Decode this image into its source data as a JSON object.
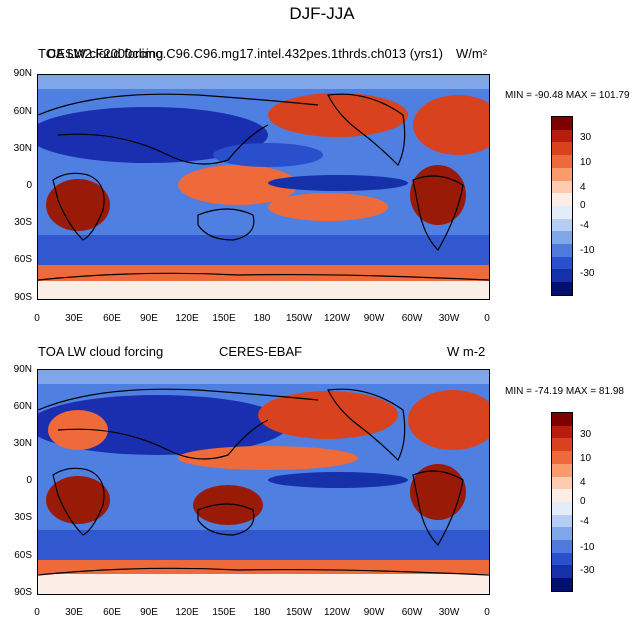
{
  "figure": {
    "title": "DJF-JJA"
  },
  "panels": [
    {
      "left_title": "TOA LW cloud forcing",
      "overlap_title": "CESM2.F2000climo.C96.C96.mg17.intel.432pes.1thrds.ch013 (yrs1)",
      "center_title": "",
      "right_title": "W/m²",
      "minmax": "MIN = -90.48 MAX = 101.79"
    },
    {
      "left_title": "TOA LW cloud forcing",
      "overlap_title": "",
      "center_title": "CERES-EBAF",
      "right_title": "W m-2",
      "minmax": "MIN = -74.19 MAX =  81.98"
    }
  ],
  "axes": {
    "lat_labels": [
      "90N",
      "60N",
      "30N",
      "0",
      "30S",
      "60S",
      "90S"
    ],
    "lon_labels": [
      "0",
      "30E",
      "60E",
      "90E",
      "120E",
      "150E",
      "180",
      "150W",
      "120W",
      "90W",
      "60W",
      "30W",
      "0"
    ]
  },
  "colorbar": {
    "labels": [
      "30",
      "10",
      "4",
      "0",
      "-4",
      "-10",
      "-30"
    ],
    "colors": [
      "#7f0000",
      "#b81d0c",
      "#d9421e",
      "#ef6a3a",
      "#fa9b6e",
      "#fdcbb0",
      "#fbeee6",
      "#e3ecfa",
      "#b5cdf2",
      "#7fa6e8",
      "#4f79dd",
      "#2a4fcc",
      "#1530a8",
      "#001070"
    ]
  },
  "colors": {
    "ocean_blue": "#4f7fe0",
    "deep_blue": "#1a2fb0",
    "warm_red": "#e0502a",
    "dark_red": "#9a1a08",
    "pale": "#f7d8c8"
  }
}
